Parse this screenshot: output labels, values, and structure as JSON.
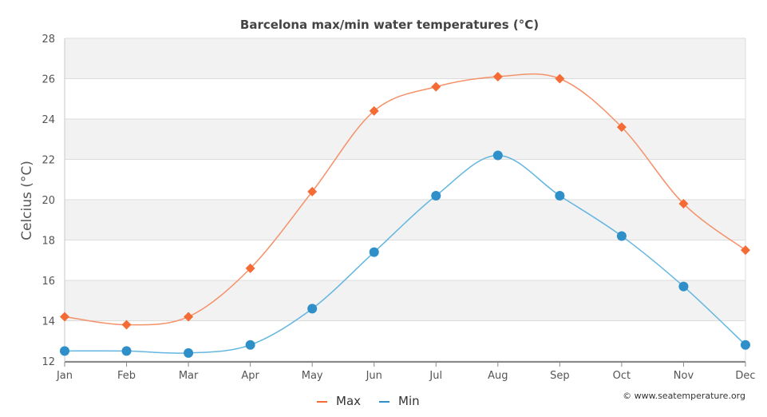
{
  "chart_data": {
    "type": "line",
    "title": "Barcelona max/min water temperatures (°C)",
    "xlabel": "",
    "ylabel": "Celcius (°C)",
    "categories": [
      "Jan",
      "Feb",
      "Mar",
      "Apr",
      "May",
      "Jun",
      "Jul",
      "Aug",
      "Sep",
      "Oct",
      "Nov",
      "Dec"
    ],
    "ylim": [
      12,
      28
    ],
    "yticks": [
      12,
      14,
      16,
      18,
      20,
      22,
      24,
      26,
      28
    ],
    "grid": "horizontal bands",
    "legend_position": "bottom-center",
    "series": [
      {
        "name": "Max",
        "color": "#f46b36",
        "line_color": "#f5916a",
        "marker": "diamond",
        "values": [
          14.2,
          13.8,
          14.2,
          16.6,
          20.4,
          24.4,
          25.6,
          26.1,
          26.0,
          23.6,
          19.8,
          17.5
        ]
      },
      {
        "name": "Min",
        "color": "#2f8fc9",
        "line_color": "#63b6e0",
        "marker": "circle",
        "values": [
          12.5,
          12.5,
          12.4,
          12.8,
          14.6,
          17.4,
          20.2,
          22.2,
          20.2,
          18.2,
          15.7,
          12.8
        ]
      }
    ]
  },
  "credit": "© www.seatemperature.org"
}
